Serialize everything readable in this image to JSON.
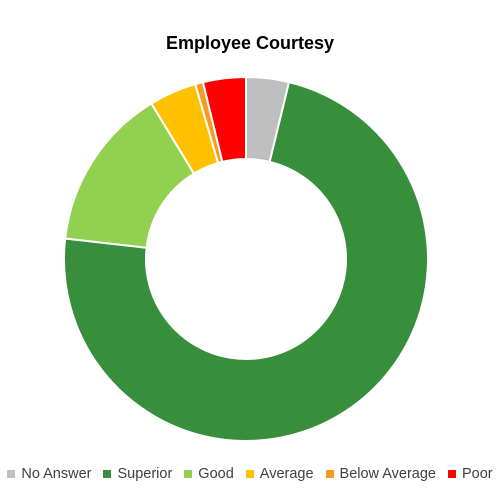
{
  "chart_data": {
    "type": "donut",
    "title": "Employee Courtesy",
    "categories": [
      "No Answer",
      "Superior",
      "Good",
      "Average",
      "Below Average",
      "Poor"
    ],
    "values": [
      3.8,
      73.0,
      14.5,
      4.2,
      0.7,
      3.8
    ],
    "colors": [
      "#bfbfbf",
      "#378e3b",
      "#92d050",
      "#ffc000",
      "#f79a1f",
      "#ff0000"
    ],
    "legend_position": "bottom",
    "start_angle_deg": 0
  }
}
